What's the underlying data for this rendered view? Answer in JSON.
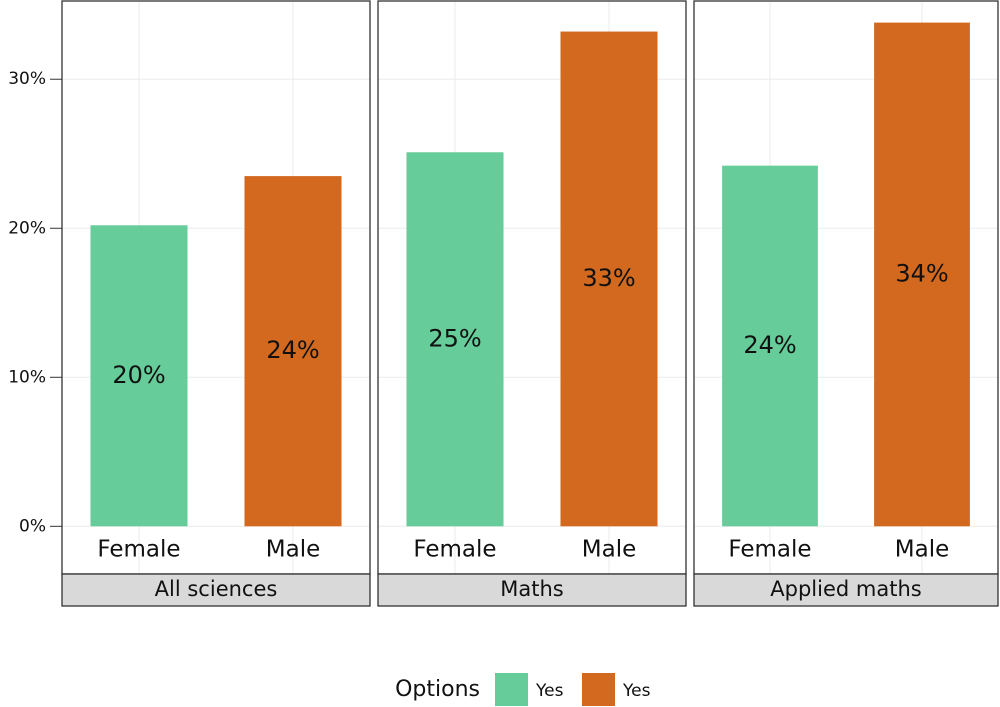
{
  "chart_data": {
    "type": "bar",
    "ylim": [
      -3.2,
      35.25
    ],
    "yticks": [
      {
        "value": 0,
        "label": "0%"
      },
      {
        "value": 10,
        "label": "10%"
      },
      {
        "value": 20,
        "label": "20%"
      },
      {
        "value": 30,
        "label": "30%"
      }
    ],
    "grid": true,
    "legend": {
      "title": "Options",
      "position": "bottom"
    },
    "series": [
      {
        "name": "Yes",
        "color": "#66cc99"
      },
      {
        "name": "Yes",
        "color": "#d2691e"
      }
    ],
    "panels": [
      {
        "title": "All sciences",
        "categories": [
          "Female",
          "Male"
        ],
        "values": [
          20.2,
          23.5
        ],
        "value_labels": [
          "20%",
          "24%"
        ]
      },
      {
        "title": "Maths",
        "categories": [
          "Female",
          "Male"
        ],
        "values": [
          25.1,
          33.2
        ],
        "value_labels": [
          "25%",
          "33%"
        ]
      },
      {
        "title": "Applied maths",
        "categories": [
          "Female",
          "Male"
        ],
        "values": [
          24.2,
          33.8
        ],
        "value_labels": [
          "24%",
          "34%"
        ]
      }
    ]
  }
}
